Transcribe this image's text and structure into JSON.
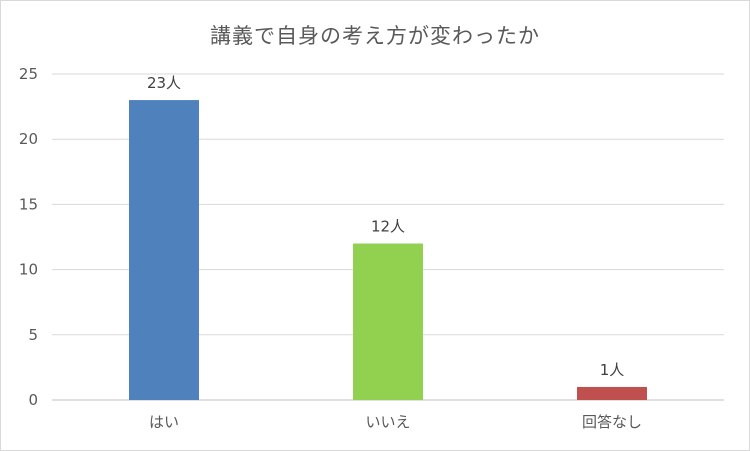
{
  "chart_data": {
    "type": "bar",
    "title": "講義で自身の考え方が変わったか",
    "categories": [
      "はい",
      "いいえ",
      "回答なし"
    ],
    "values": [
      23,
      12,
      1
    ],
    "data_labels": [
      "23人",
      "12人",
      "1人"
    ],
    "colors": [
      "#4f81bd",
      "#92d050",
      "#c0504d"
    ],
    "ylim": [
      0,
      25
    ],
    "yticks": [
      0,
      5,
      10,
      15,
      20,
      25
    ],
    "grid": true,
    "legend": "none",
    "xlabel": "",
    "ylabel": ""
  }
}
